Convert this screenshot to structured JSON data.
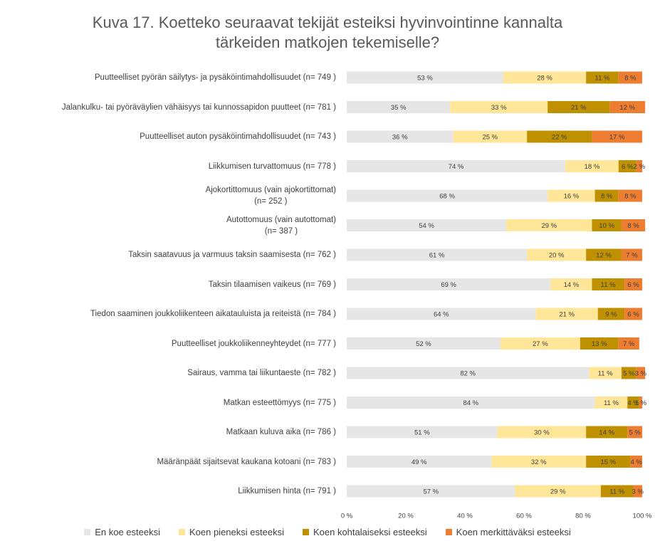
{
  "chart_data": {
    "type": "stacked_barh",
    "title": "Kuva 17. Koetteko seuraavat tekijät esteiksi hyvinvointinne kannalta\ntärkeiden matkojen tekemiselle?",
    "categories": [
      "Puutteelliset pyörän säilytys- ja pysäköintimahdollisuudet (n= 749 )",
      "Jalankulku- tai pyöräväylien vähäisyys tai kunnossapidon puutteet (n= 781 )",
      "Puutteelliset auton pysäköintimahdollisuudet (n= 743 )",
      "Liikkumisen turvattomuus (n= 778 )",
      "Ajokortittomuus (vain ajokortittomat)\n(n= 252 )",
      "Autottomuus (vain autottomat)\n(n= 387 )",
      "Taksin saatavuus ja varmuus taksin saamisesta (n= 762 )",
      "Taksin tilaamisen vaikeus (n= 769 )",
      "Tiedon saaminen joukkoliikenteen aikatauluista ja reiteistä (n= 784 )",
      "Puutteelliset joukkoliikenneyhteydet (n= 777 )",
      "Sairaus, vamma tai liikuntaeste (n= 782 )",
      "Matkan esteettömyys (n= 775 )",
      "Matkaan kuluva aika (n= 786 )",
      "Määränpäät sijaitsevat kaukana kotoani (n= 783 )",
      "Liikkumisen hinta (n= 791 )"
    ],
    "series": [
      {
        "name": "En koe esteeksi",
        "color": "#e7e6e6",
        "values": [
          53,
          35,
          36,
          74,
          68,
          54,
          61,
          69,
          64,
          52,
          82,
          84,
          51,
          49,
          57
        ],
        "value_labels": [
          "53 %",
          "35 %",
          "36 %",
          "74 %",
          "68 %",
          "54 %",
          "61 %",
          "69 %",
          "64 %",
          "52 %",
          "82 %",
          "84 %",
          "51 %",
          "49 %",
          "57 %"
        ]
      },
      {
        "name": "Koen pieneksi esteeksi",
        "color": "#ffe699",
        "values": [
          28,
          33,
          25,
          18,
          16,
          29,
          20,
          14,
          21,
          27,
          11,
          11,
          30,
          32,
          29
        ],
        "value_labels": [
          "28 %",
          "33 %",
          "25 %",
          "18 %",
          "16 %",
          "29 %",
          "20 %",
          "14 %",
          "21 %",
          "27 %",
          "11 %",
          "11 %",
          "30 %",
          "32 %",
          "29 %"
        ]
      },
      {
        "name": "Koen kohtalaiseksi esteeksi",
        "color": "#bf9000",
        "values": [
          11,
          21,
          22,
          6,
          8,
          10,
          12,
          11,
          9,
          13,
          5,
          4,
          14,
          15,
          11
        ],
        "value_labels": [
          "11 %",
          "21 %",
          "22 %",
          "6 %",
          "8 %",
          "10 %",
          "12 %",
          "11 %",
          "9 %",
          "13 %",
          "5 %",
          "4 %",
          "14 %",
          "15 %",
          "11 %"
        ]
      },
      {
        "name": "Koen merkittäväksi esteeksi",
        "color": "#ed7d31",
        "values": [
          8,
          12,
          17,
          2,
          8,
          8,
          7,
          6,
          6,
          7,
          3,
          1,
          5,
          4,
          3
        ],
        "value_labels": [
          "8 %",
          "12 %",
          "17 %",
          "2 %",
          "8 %",
          "8 %",
          "7 %",
          "6 %",
          "6 %",
          "7 %",
          "3 %",
          "1 %",
          "5 %",
          "4 %",
          "3 %"
        ]
      }
    ],
    "xlim": [
      0,
      100
    ],
    "xticks": [
      {
        "value": 0,
        "label": "0 %"
      },
      {
        "value": 20,
        "label": "20 %"
      },
      {
        "value": 40,
        "label": "40 %"
      },
      {
        "value": 60,
        "label": "60 %"
      },
      {
        "value": 80,
        "label": "80 %"
      },
      {
        "value": 100,
        "label": "100 %"
      }
    ],
    "grid": false
  }
}
